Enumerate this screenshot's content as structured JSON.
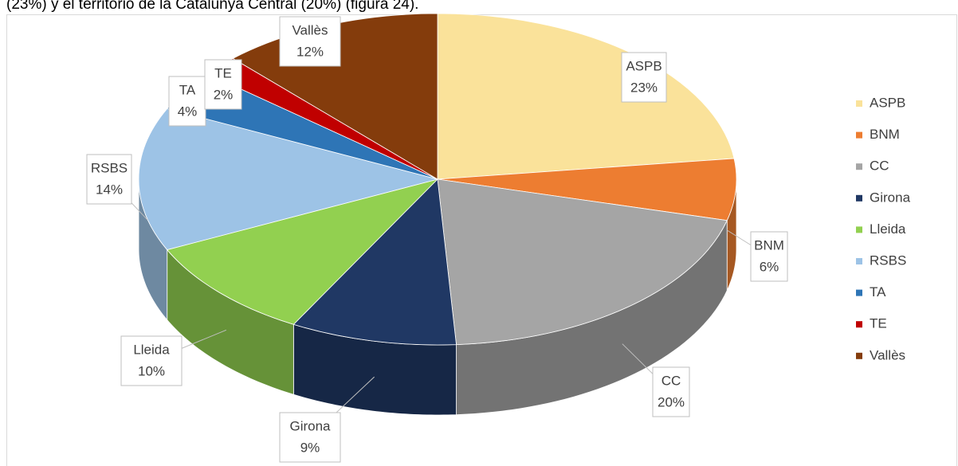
{
  "intro_text": "(23%) y el territorio de la Catalunya Central (20%) (figura 24).",
  "chart_data": {
    "type": "pie",
    "categories": [
      "ASPB",
      "BNM",
      "CC",
      "Girona",
      "Lleida",
      "RSBS",
      "TA",
      "TE",
      "Vallès"
    ],
    "values": [
      23,
      6,
      20,
      9,
      10,
      14,
      4,
      2,
      12
    ],
    "value_labels": [
      "23%",
      "6%",
      "20%",
      "9%",
      "10%",
      "14%",
      "4%",
      "2%",
      "12%"
    ],
    "colors": [
      "#fae29a",
      "#ed7d31",
      "#a5a5a5",
      "#203864",
      "#92d050",
      "#9dc3e6",
      "#2e75b6",
      "#c00000",
      "#843c0c"
    ],
    "legend": "right"
  }
}
